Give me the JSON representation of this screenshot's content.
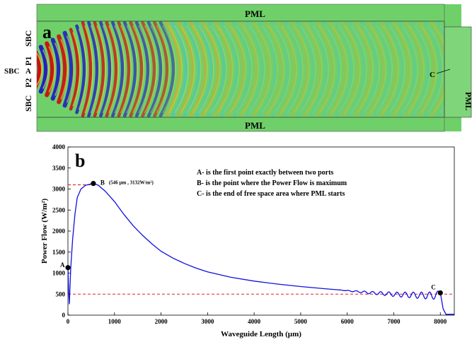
{
  "panel_a": {
    "letter": "a",
    "label_pml_top": "PML",
    "label_pml_bottom": "PML",
    "label_pml_right": "PML",
    "label_sbc_top": "SBC",
    "label_p1": "P1",
    "label_sbc_mid": "SBC",
    "label_a": "A",
    "label_p2": "P2",
    "label_sbc_bottom": "SBC",
    "label_c": "C",
    "colors": {
      "background": "#6fd06a",
      "high": "#cc1010",
      "low": "#2020c0",
      "mid_high": "#f0e040",
      "mid_low": "#40c0e0"
    }
  },
  "chart_data": {
    "type": "line",
    "panel_letter": "b",
    "xlabel": "Waveguide Length (µm)",
    "ylabel": "Power Flow (W/m²)",
    "xlim": [
      0,
      8300
    ],
    "ylim": [
      0,
      4000
    ],
    "x_ticks": [
      0,
      1000,
      2000,
      3000,
      4000,
      5000,
      6000,
      7000,
      8000
    ],
    "y_ticks": [
      0,
      500,
      1000,
      1500,
      2000,
      2500,
      3000,
      3500,
      4000
    ],
    "series": [
      {
        "color": "#1010e0",
        "points": [
          [
            0,
            1130
          ],
          [
            15,
            600
          ],
          [
            30,
            260
          ],
          [
            60,
            1100
          ],
          [
            100,
            1800
          ],
          [
            150,
            2400
          ],
          [
            200,
            2800
          ],
          [
            280,
            3000
          ],
          [
            380,
            3090
          ],
          [
            546,
            3132
          ],
          [
            650,
            3090
          ],
          [
            800,
            2950
          ],
          [
            1000,
            2700
          ],
          [
            1200,
            2400
          ],
          [
            1400,
            2130
          ],
          [
            1600,
            1900
          ],
          [
            1800,
            1700
          ],
          [
            2000,
            1520
          ],
          [
            2250,
            1360
          ],
          [
            2500,
            1230
          ],
          [
            2750,
            1120
          ],
          [
            3000,
            1030
          ],
          [
            3500,
            900
          ],
          [
            4000,
            810
          ],
          [
            4500,
            740
          ],
          [
            5000,
            680
          ],
          [
            5500,
            630
          ],
          [
            6000,
            585
          ],
          [
            6500,
            545
          ],
          [
            7000,
            515
          ],
          [
            7500,
            500
          ],
          [
            7800,
            495
          ],
          [
            7950,
            510
          ],
          [
            8000,
            530
          ],
          [
            8060,
            150
          ],
          [
            8120,
            20
          ],
          [
            8300,
            20
          ]
        ]
      }
    ],
    "reference_lines": [
      {
        "type": "horizontal",
        "y": 500,
        "color": "#e02020"
      },
      {
        "type": "horizontal",
        "y": 3100,
        "x_end": 546,
        "color": "#e02020"
      }
    ],
    "points": [
      {
        "label": "A",
        "x": 0,
        "y": 1130
      },
      {
        "label": "B",
        "x": 546,
        "y": 3132,
        "annotation": "(546 µm , 3132W/m²)"
      },
      {
        "label": "C",
        "x": 8000,
        "y": 530
      }
    ],
    "legend_notes": [
      "A- is the first point exactly between two ports",
      "B- is the point where the Power Flow is maximum",
      "C- is the end of free space area where PML starts"
    ]
  }
}
